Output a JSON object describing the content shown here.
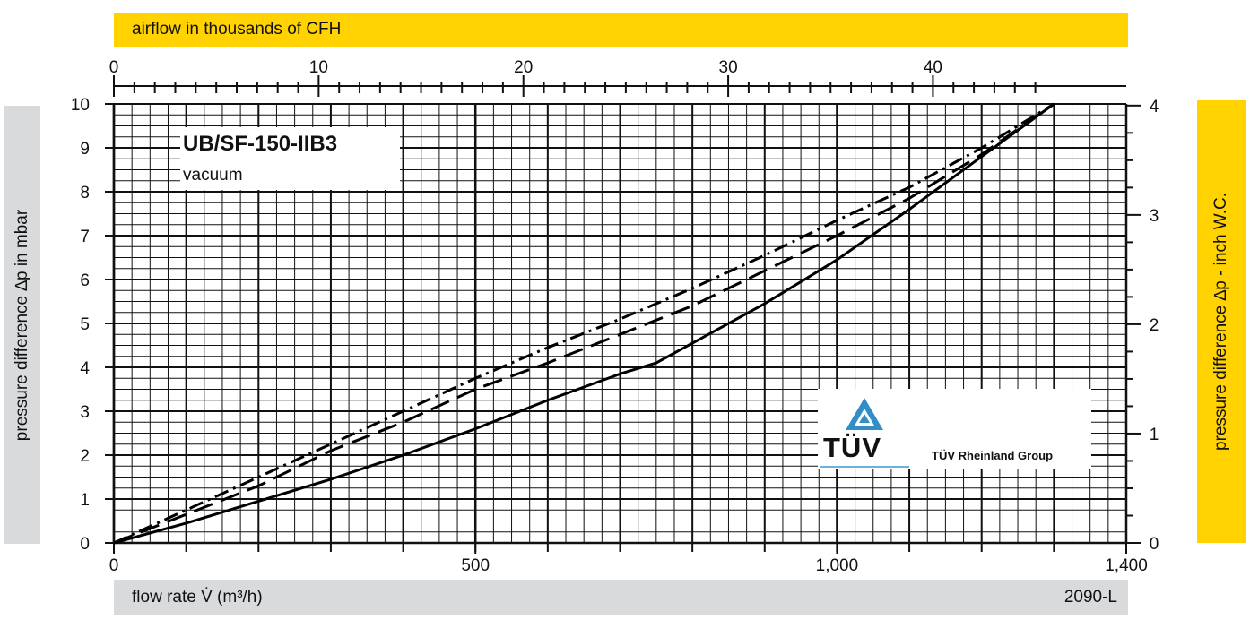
{
  "colors": {
    "accent_yellow": "#ffd200",
    "label_grey": "#d9dadb",
    "grid": "#111111"
  },
  "top_axis": {
    "label": "airflow in thousands of CFH"
  },
  "bottom_axis": {
    "label": "flow rate V̇ (m³/h)",
    "code": "2090-L"
  },
  "left_axis": {
    "label": "pressure difference ∆p in mbar"
  },
  "right_axis": {
    "label": "pressure difference ∆p  - inch W.C."
  },
  "model_box": {
    "title": "UB/SF-150-IIB3",
    "subtitle": "vacuum"
  },
  "logo": {
    "name": "TÜV",
    "group": "TÜV Rheinland Group"
  },
  "chart_data": {
    "type": "line",
    "title": "UB/SF-150-IIB3",
    "subtitle": "vacuum",
    "xlabel": "flow rate V̇ (m³/h)",
    "ylabel": "pressure difference ∆p in mbar",
    "xlim": [
      0,
      1400
    ],
    "ylim": [
      0,
      10
    ],
    "x_ticks": [
      0,
      500,
      1000,
      1400
    ],
    "x_tick_labels": [
      "0",
      "500",
      "1,000",
      "1,400"
    ],
    "y_ticks": [
      0,
      1,
      2,
      3,
      4,
      5,
      6,
      7,
      8,
      9,
      10
    ],
    "secondary_x": {
      "label": "airflow in thousands of CFH",
      "ticks": [
        0,
        10,
        20,
        30,
        40
      ],
      "lim": [
        0,
        49.44
      ]
    },
    "secondary_y": {
      "label": "pressure difference ∆p  - inch W.C.",
      "ticks": [
        0,
        1,
        2,
        3,
        4
      ],
      "lim": [
        0,
        4.015
      ]
    },
    "grid": true,
    "series": [
      {
        "style": "solid",
        "x": [
          0,
          100,
          200,
          300,
          400,
          500,
          600,
          700,
          750,
          800,
          900,
          1000,
          1100,
          1200,
          1300
        ],
        "y": [
          0,
          0.45,
          0.95,
          1.45,
          2.0,
          2.6,
          3.25,
          3.85,
          4.1,
          4.55,
          5.45,
          6.45,
          7.6,
          8.8,
          10
        ]
      },
      {
        "style": "dashed",
        "x": [
          0,
          100,
          200,
          300,
          400,
          500,
          600,
          700,
          800,
          900,
          1000,
          1100,
          1200,
          1300
        ],
        "y": [
          0,
          0.65,
          1.3,
          2.1,
          2.75,
          3.5,
          4.1,
          4.75,
          5.4,
          6.2,
          7.0,
          7.85,
          8.85,
          10
        ]
      },
      {
        "style": "dash-dot",
        "x": [
          0,
          100,
          200,
          300,
          400,
          500,
          600,
          700,
          800,
          900,
          1000,
          1100,
          1200,
          1300
        ],
        "y": [
          0,
          0.75,
          1.5,
          2.25,
          3.0,
          3.75,
          4.45,
          5.1,
          5.8,
          6.55,
          7.35,
          8.1,
          9.0,
          10
        ]
      }
    ]
  }
}
